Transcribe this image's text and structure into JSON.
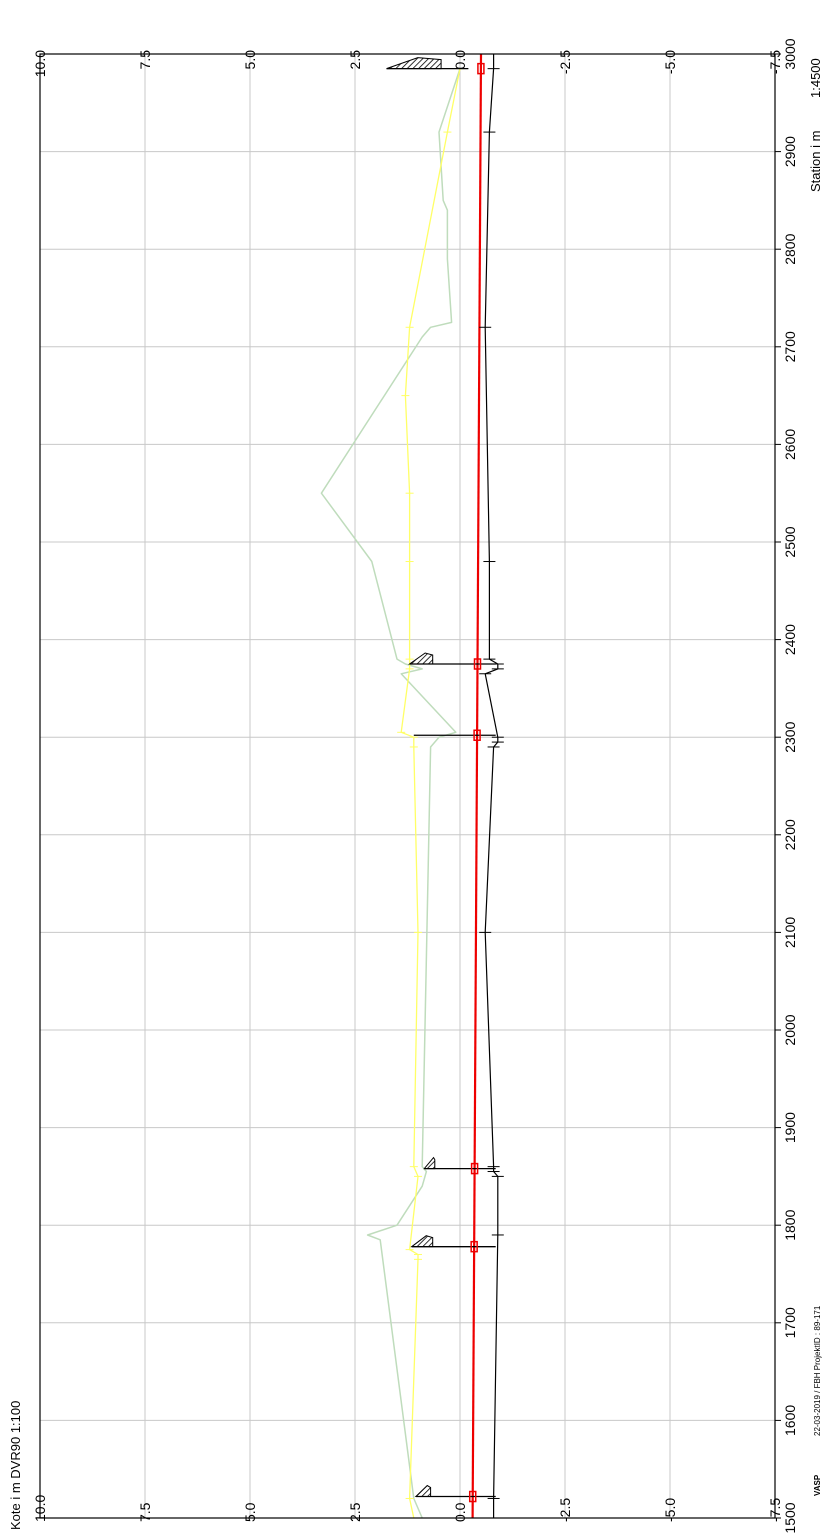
{
  "chart_data": {
    "type": "line",
    "xlabel": "Station i m",
    "xscale": "1:4500",
    "ylabel": "Kote i m DVR90 1:100",
    "xlim": [
      1500,
      3000
    ],
    "ylim": [
      -7.5,
      10.0
    ],
    "x_ticks": [
      "1500",
      "1600",
      "1700",
      "1800",
      "1900",
      "2000",
      "2100",
      "2200",
      "2300",
      "2400",
      "2500",
      "2600",
      "2700",
      "2800",
      "2900",
      "3000"
    ],
    "y_ticks": [
      "10.0",
      "7.5",
      "5.0",
      "2.5",
      "0.0",
      "-2.5",
      "-5.0",
      "-7.5"
    ],
    "grid": true,
    "footer_left": "VASP",
    "footer_right": "22-03-2019 / FBH   ProjektID : 89-171",
    "colors": {
      "terrain": "#bfdcbc",
      "yellow": "#ffff66",
      "red": "#ee0000",
      "bottom": "#000000",
      "grid": "#c8c8c8"
    },
    "series": [
      {
        "name": "terrain",
        "x": [
          1500,
          1520,
          1785,
          1790,
          1800,
          1840,
          1855,
          1860,
          2290,
          2300,
          2305,
          2365,
          2370,
          2375,
          2380,
          2480,
          2550,
          2710,
          2720,
          2725,
          2790,
          2840,
          2850,
          2920,
          2985
        ],
        "y": [
          0.9,
          1.1,
          1.9,
          2.2,
          1.5,
          0.9,
          0.8,
          0.9,
          0.7,
          0.5,
          0.1,
          1.4,
          0.9,
          1.3,
          1.5,
          2.1,
          3.3,
          0.9,
          0.7,
          0.2,
          0.3,
          0.3,
          0.4,
          0.5,
          0.0
        ]
      },
      {
        "name": "yellow",
        "x": [
          1500,
          1520,
          1765,
          1770,
          1775,
          1850,
          1860,
          2100,
          2290,
          2300,
          2305,
          2370,
          2380,
          2480,
          2550,
          2650,
          2720,
          2920,
          2985
        ],
        "y": [
          1.1,
          1.2,
          1.0,
          1.0,
          1.2,
          1.0,
          1.1,
          1.0,
          1.1,
          1.1,
          1.4,
          1.2,
          1.2,
          1.2,
          1.2,
          1.3,
          1.2,
          0.3,
          0.0
        ]
      },
      {
        "name": "red",
        "x": [
          1500,
          3000
        ],
        "y": [
          -0.3,
          -0.5
        ]
      },
      {
        "name": "bottom",
        "x": [
          1500,
          1520,
          1790,
          1850,
          1855,
          1860,
          2100,
          2290,
          2295,
          2300,
          2365,
          2370,
          2375,
          2380,
          2480,
          2720,
          2920,
          2985,
          3000
        ],
        "y": [
          -0.8,
          -0.8,
          -0.9,
          -0.9,
          -0.8,
          -0.8,
          -0.6,
          -0.8,
          -0.9,
          -0.9,
          -0.6,
          -0.9,
          -0.9,
          -0.7,
          -0.7,
          -0.6,
          -0.7,
          -0.8,
          -0.8
        ]
      }
    ],
    "structures": [
      {
        "x": 1522,
        "top": 1.05,
        "bottom": -0.85,
        "hatch_h": 0.35
      },
      {
        "x": 1778,
        "top": 1.15,
        "bottom": -0.85,
        "hatch_h": 0.5
      },
      {
        "x": 1858,
        "top": 0.85,
        "bottom": -0.85,
        "hatch_h": 0.25
      },
      {
        "x": 2302,
        "top": 1.1,
        "bottom": -0.85,
        "hatch_h": 0.0
      },
      {
        "x": 2375,
        "top": 1.2,
        "bottom": -0.85,
        "hatch_h": 0.55
      },
      {
        "x": 2985,
        "top": 1.75,
        "bottom": -0.2,
        "hatch_h": 1.3
      }
    ]
  }
}
